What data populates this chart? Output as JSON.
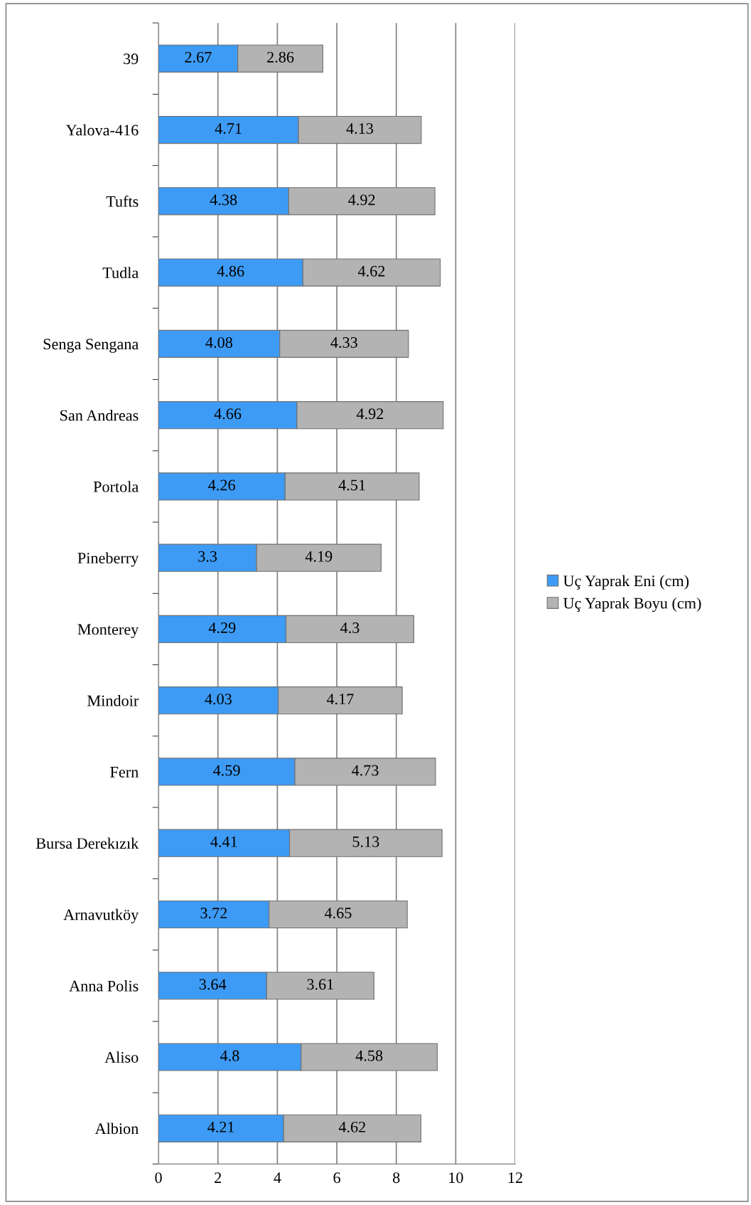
{
  "chart_data": {
    "type": "bar",
    "orientation": "horizontal",
    "stacked": true,
    "categories": [
      "39",
      "Yalova-416",
      "Tufts",
      "Tudla",
      "Senga Sengana",
      "San Andreas",
      "Portola",
      "Pineberry",
      "Monterey",
      "Mindoir",
      "Fern",
      "Bursa Derekızık",
      "Arnavutköy",
      "Anna Polis",
      "Aliso",
      "Albion"
    ],
    "series": [
      {
        "name": "Uç Yaprak Eni (cm)",
        "color": "#3d9bf5",
        "values": [
          2.67,
          4.71,
          4.38,
          4.86,
          4.08,
          4.66,
          4.26,
          3.3,
          4.29,
          4.03,
          4.59,
          4.41,
          3.72,
          3.64,
          4.8,
          4.21
        ]
      },
      {
        "name": "Uç Yaprak Boyu (cm)",
        "color": "#b3b3b3",
        "values": [
          2.86,
          4.13,
          4.92,
          4.62,
          4.33,
          4.92,
          4.51,
          4.19,
          4.3,
          4.17,
          4.73,
          5.13,
          4.65,
          3.61,
          4.58,
          4.62
        ]
      }
    ],
    "xlim": [
      0,
      12
    ],
    "xticks": [
      0,
      2,
      4,
      6,
      8,
      10,
      12
    ],
    "grid": "x",
    "legend": "right",
    "data_labels": true
  }
}
